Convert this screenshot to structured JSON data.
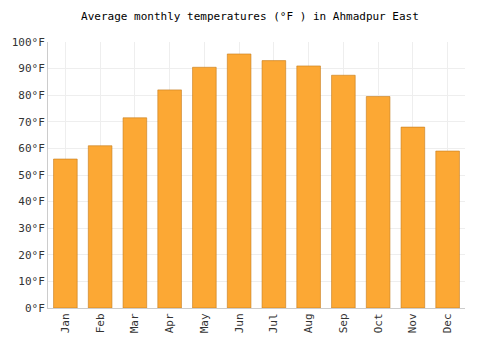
{
  "chart_data": {
    "type": "bar",
    "title": "Average monthly temperatures (°F ) in Ahmadpur East",
    "categories": [
      "Jan",
      "Feb",
      "Mar",
      "Apr",
      "May",
      "Jun",
      "Jul",
      "Aug",
      "Sep",
      "Oct",
      "Nov",
      "Dec"
    ],
    "values": [
      56,
      61,
      71.5,
      82,
      90.5,
      95.5,
      93,
      91,
      87.5,
      79.5,
      68,
      59
    ],
    "color": "#fca834",
    "ylim": [
      0,
      100
    ],
    "yticks": [
      {
        "value": 0,
        "label": "0°F"
      },
      {
        "value": 10,
        "label": "10°F"
      },
      {
        "value": 20,
        "label": "20°F"
      },
      {
        "value": 30,
        "label": "30°F"
      },
      {
        "value": 40,
        "label": "40°F"
      },
      {
        "value": 50,
        "label": "50°F"
      },
      {
        "value": 60,
        "label": "60°F"
      },
      {
        "value": 70,
        "label": "70°F"
      },
      {
        "value": 80,
        "label": "80°F"
      },
      {
        "value": 90,
        "label": "90°F"
      },
      {
        "value": 100,
        "label": "100°F"
      }
    ],
    "grid": true
  }
}
